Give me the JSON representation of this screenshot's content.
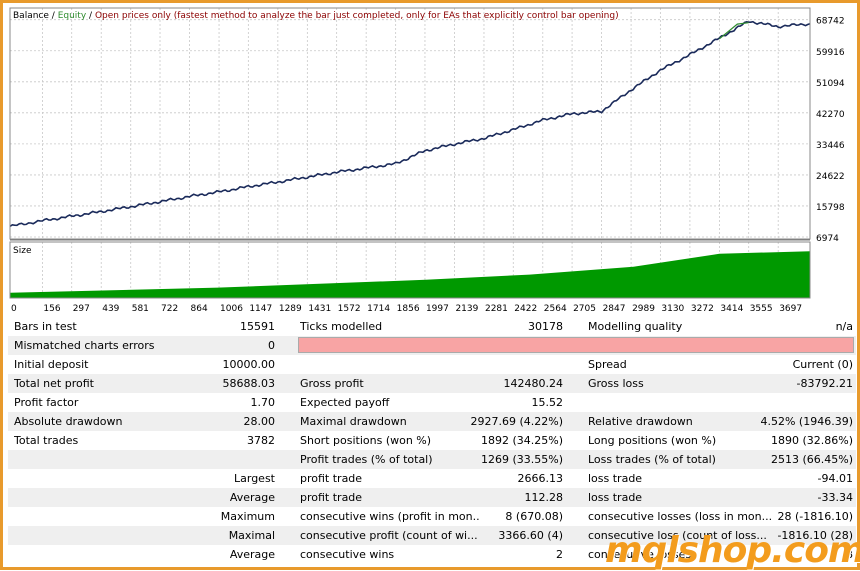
{
  "chart_header": {
    "balance": "Balance",
    "separator": "/",
    "equity": "Equity",
    "separator2": "/",
    "method": "Open prices only (fastest method to analyze the bar just completed, only for EAs that explicitly control bar opening)"
  },
  "size_panel_label": "Size",
  "colors": {
    "balance_line": "#1a2a5a",
    "equity_line": "#2e8b2e",
    "size_fill": "#009900",
    "accent_border": "#e89a2c",
    "pink_bar": "#f8a4a4",
    "watermark": "#f39c1d"
  },
  "chart_data": {
    "type": "line",
    "title": "",
    "series": [
      {
        "name": "Balance",
        "x": [
          0,
          156,
          297,
          439,
          581,
          722,
          864,
          1006,
          1147,
          1289,
          1431,
          1572,
          1714,
          1856,
          1997,
          2139,
          2281,
          2422,
          2564,
          2705,
          2847,
          2989,
          3130,
          3272,
          3414,
          3555,
          3697,
          3850
        ],
        "values": [
          10000,
          11600,
          12900,
          14200,
          15600,
          17000,
          18500,
          19800,
          21300,
          22600,
          24000,
          25400,
          26600,
          27800,
          31500,
          33400,
          35000,
          37500,
          40200,
          42000,
          42700,
          48800,
          54400,
          58800,
          63500,
          68300,
          66800,
          67600
        ]
      },
      {
        "name": "Equity",
        "x": [
          3414,
          3500,
          3555
        ],
        "values": [
          63300,
          67500,
          67900
        ]
      }
    ],
    "y_ticks": [
      "68742",
      "59916",
      "51094",
      "42270",
      "33446",
      "24622",
      "15798",
      "6974"
    ],
    "x_ticks": [
      "0",
      "156",
      "297",
      "439",
      "581",
      "722",
      "864",
      "1006",
      "1147",
      "1289",
      "1431",
      "1572",
      "1714",
      "1856",
      "1997",
      "2139",
      "2281",
      "2422",
      "2564",
      "2705",
      "2847",
      "2989",
      "3130",
      "3272",
      "3414",
      "3555",
      "3697"
    ],
    "ylim": [
      6974,
      71500
    ],
    "grid": true,
    "size_series": {
      "name": "Size",
      "x": [
        0,
        1000,
        2000,
        2500,
        3000,
        3414,
        3850
      ],
      "values": [
        0.1,
        0.2,
        0.35,
        0.45,
        0.6,
        0.85,
        0.9
      ]
    }
  },
  "stats": {
    "r0": {
      "l1": "Bars in test",
      "v1": "15591",
      "l2": "Ticks modelled",
      "v2": "30178",
      "l3": "Modelling quality",
      "v3": "n/a"
    },
    "r1": {
      "l1": "Mismatched charts errors",
      "v1": "0"
    },
    "r2": {
      "l1": "Initial deposit",
      "v1": "10000.00",
      "l3": "Spread",
      "v3": "Current (0)"
    },
    "r3": {
      "l1": "Total net profit",
      "v1": "58688.03",
      "l2": "Gross profit",
      "v2": "142480.24",
      "l3": "Gross loss",
      "v3": "-83792.21"
    },
    "r4": {
      "l1": "Profit factor",
      "v1": "1.70",
      "l2": "Expected payoff",
      "v2": "15.52"
    },
    "r5": {
      "l1": "Absolute drawdown",
      "v1": "28.00",
      "l2": "Maximal drawdown",
      "v2": "2927.69 (4.22%)",
      "l3": "Relative drawdown",
      "v3": "4.52% (1946.39)"
    },
    "r6": {
      "l1": "Total trades",
      "v1": "3782",
      "l2": "Short positions (won %)",
      "v2": "1892 (34.25%)",
      "l3": "Long positions (won %)",
      "v3": "1890 (32.86%)"
    },
    "r7": {
      "l2": "Profit trades (% of total)",
      "v2": "1269 (33.55%)",
      "l3": "Loss trades (% of total)",
      "v3": "2513 (66.45%)"
    },
    "r8": {
      "v1": "Largest",
      "l2": "profit trade",
      "v2": "2666.13",
      "l3": "loss trade",
      "v3": "-94.01"
    },
    "r9": {
      "v1": "Average",
      "l2": "profit trade",
      "v2": "112.28",
      "l3": "loss trade",
      "v3": "-33.34"
    },
    "r10": {
      "v1": "Maximum",
      "l2": "consecutive wins (profit in mon...",
      "v2": "8 (670.08)",
      "l3": "consecutive losses (loss in mon...",
      "v3": "28 (-1816.10)"
    },
    "r11": {
      "v1": "Maximal",
      "l2": "consecutive profit (count of wi...",
      "v2": "3366.60 (4)",
      "l3": "consecutive loss (count of loss...",
      "v3": "-1816.10 (28)"
    },
    "r12": {
      "v1": "Average",
      "l2": "consecutive wins",
      "v2": "2",
      "l3": "consecutive losses",
      "v3": "8"
    }
  },
  "watermark": "mqlshop.com"
}
